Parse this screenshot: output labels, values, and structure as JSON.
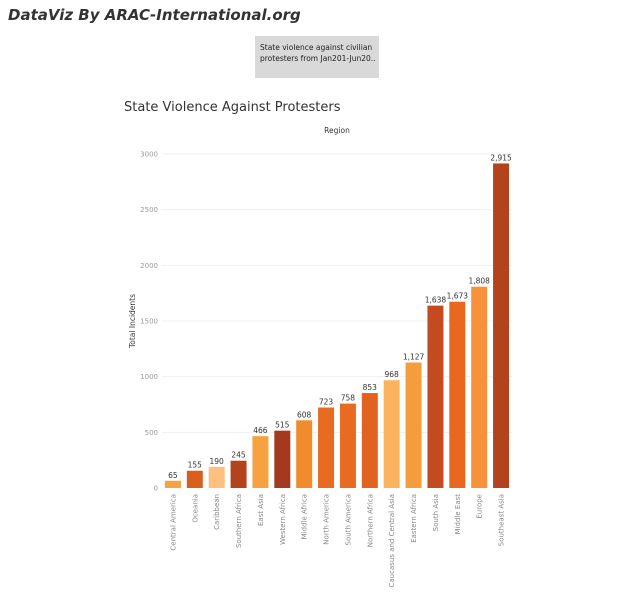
{
  "brand": "DataViz By ARAC-International.org",
  "description_lines": [
    "State violence against civilian",
    "protesters from Jan201-Jun20..."
  ],
  "chart_data": {
    "type": "bar",
    "title": "State Violence Against Protesters",
    "xlabel": "Region",
    "ylabel": "Total Incidents",
    "ylim": [
      0,
      3000
    ],
    "yticks": [
      0,
      500,
      1000,
      1500,
      2000,
      2500,
      3000
    ],
    "categories": [
      "Central America",
      "Oceania",
      "Caribbean",
      "Southern Africa",
      "East Asia",
      "Western Africa",
      "Middle Africa",
      "North America",
      "South America",
      "Northern Africa",
      "Caucasus and Central Asia",
      "Eastern Africa",
      "South Asia",
      "Middle East",
      "Europe",
      "Southeast Asia"
    ],
    "values": [
      65,
      155,
      190,
      245,
      466,
      515,
      608,
      723,
      758,
      853,
      968,
      1127,
      1638,
      1673,
      1808,
      2915
    ],
    "value_labels": [
      "65",
      "155",
      "190",
      "245",
      "466",
      "515",
      "608",
      "723",
      "758",
      "853",
      "968",
      "1,127",
      "1,638",
      "1,673",
      "1,808",
      "2,915"
    ],
    "colors": [
      "#f7a240",
      "#d95f1d",
      "#fdc07f",
      "#b3431d",
      "#f7a240",
      "#a33a1f",
      "#f08c2b",
      "#e86b22",
      "#e86b22",
      "#e2621f",
      "#fcb360",
      "#f59d3d",
      "#c44a1f",
      "#e8681f",
      "#f5923a",
      "#b3431d"
    ],
    "grid": true,
    "legend": "none"
  }
}
